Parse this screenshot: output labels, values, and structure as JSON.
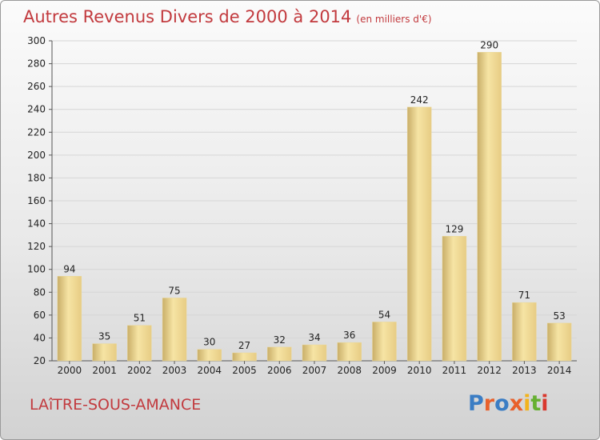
{
  "title": "Autres Revenus Divers de 2000 à 2014",
  "subtitle": "(en milliers d'€)",
  "footer": {
    "city": "LAîTRE-SOUS-AMANCE"
  },
  "logo": {
    "text": "Proxiti",
    "letter_colors": [
      "#3b7dc4",
      "#e8612c",
      "#3b7dc4",
      "#e8612c",
      "#f2b31c",
      "#66b032",
      "#d9392e"
    ]
  },
  "colors": {
    "title": "#c23a3e",
    "bar_light": "#f5e2a0",
    "bar_dark": "#c9ae68"
  },
  "chart_data": {
    "type": "bar",
    "title": "Autres Revenus Divers de 2000 à 2014",
    "subtitle": "(en milliers d'€)",
    "xlabel": "",
    "ylabel": "",
    "categories": [
      "2000",
      "2001",
      "2002",
      "2003",
      "2004",
      "2005",
      "2006",
      "2007",
      "2008",
      "2009",
      "2010",
      "2011",
      "2012",
      "2013",
      "2014"
    ],
    "values": [
      94,
      35,
      51,
      75,
      30,
      27,
      32,
      34,
      36,
      54,
      242,
      129,
      290,
      71,
      53
    ],
    "ylim": [
      20,
      300
    ],
    "yticks": [
      20,
      40,
      60,
      80,
      100,
      120,
      140,
      160,
      180,
      200,
      220,
      240,
      260,
      280,
      300
    ],
    "grid": true,
    "legend": "none"
  }
}
